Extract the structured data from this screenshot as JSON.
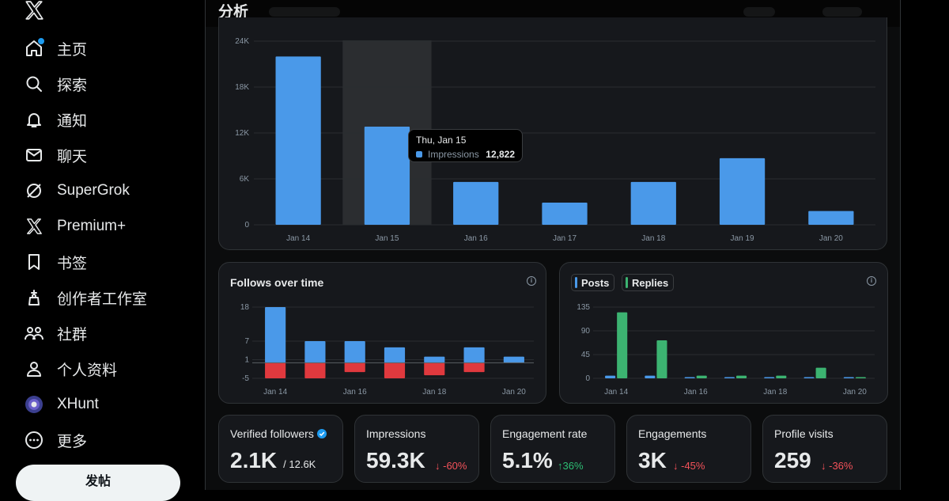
{
  "sidebar": {
    "logo": "x-logo-icon",
    "items": [
      {
        "label": "主页",
        "icon": "home-icon"
      },
      {
        "label": "探索",
        "icon": "search-icon"
      },
      {
        "label": "通知",
        "icon": "bell-icon"
      },
      {
        "label": "聊天",
        "icon": "mail-icon"
      },
      {
        "label": "SuperGrok",
        "icon": "grok-icon"
      },
      {
        "label": "Premium+",
        "icon": "x-icon"
      },
      {
        "label": "书签",
        "icon": "bookmark-icon"
      },
      {
        "label": "创作者工作室",
        "icon": "creator-studio-icon"
      },
      {
        "label": "社群",
        "icon": "communities-icon"
      },
      {
        "label": "个人资料",
        "icon": "profile-icon"
      },
      {
        "label": "XHunt",
        "icon": "xhunt-icon"
      },
      {
        "label": "更多",
        "icon": "more-icon"
      }
    ],
    "post_button": "发帖"
  },
  "header": {
    "title": "分析"
  },
  "colors": {
    "accent": "#1d9bf0",
    "blue_bar": "#4a99e9",
    "green_bar": "#3cb371",
    "red_bar": "#e0393e",
    "negative": "#f4525a",
    "positive": "#2dbf74"
  },
  "impressions_tooltip": {
    "date": "Thu, Jan 15",
    "series": "Impressions",
    "value": "12,822"
  },
  "follows_card": {
    "title": "Follows over time"
  },
  "posts_card": {
    "legend": [
      "Posts",
      "Replies"
    ]
  },
  "chart_data": [
    {
      "type": "bar",
      "categories": [
        "Jan 14",
        "Jan 15",
        "Jan 16",
        "Jan 17",
        "Jan 18",
        "Jan 19",
        "Jan 20"
      ],
      "series": [
        {
          "name": "Impressions",
          "values": [
            22000,
            12822,
            5600,
            2900,
            5600,
            8700,
            1800
          ]
        }
      ],
      "yticks": [
        "0",
        "6K",
        "12K",
        "18K",
        "24K"
      ],
      "ylim": [
        0,
        24000
      ],
      "highlighted": "Jan 15"
    },
    {
      "type": "bar",
      "title": "Follows over time",
      "categories": [
        "Jan 14",
        "Jan 15",
        "Jan 16",
        "Jan 17",
        "Jan 18",
        "Jan 19",
        "Jan 20"
      ],
      "xticks": [
        "Jan 14",
        "Jan 16",
        "Jan 18",
        "Jan 20"
      ],
      "series": [
        {
          "values": [
            18,
            7,
            7,
            5,
            2,
            5,
            2
          ]
        },
        {
          "values": [
            -5,
            -5,
            -3,
            -5,
            -4,
            -3,
            0
          ]
        }
      ],
      "yticks": [
        "-5",
        "1",
        "7",
        "18"
      ],
      "ylim": [
        -5,
        18
      ]
    },
    {
      "type": "bar",
      "categories": [
        "Jan 14",
        "Jan 15",
        "Jan 16",
        "Jan 17",
        "Jan 18",
        "Jan 19",
        "Jan 20"
      ],
      "xticks": [
        "Jan 14",
        "Jan 16",
        "Jan 18",
        "Jan 20"
      ],
      "series": [
        {
          "name": "Posts",
          "values": [
            5,
            5,
            0,
            0,
            1,
            0,
            1
          ]
        },
        {
          "name": "Replies",
          "values": [
            125,
            72,
            5,
            5,
            5,
            20,
            2
          ]
        }
      ],
      "yticks": [
        "0",
        "45",
        "90",
        "135"
      ],
      "ylim": [
        0,
        135
      ]
    }
  ],
  "stats": [
    {
      "label": "Verified followers",
      "value": "2.1K",
      "extra": "/ 12.6K",
      "verified": true
    },
    {
      "label": "Impressions",
      "value": "59.3K",
      "delta": "-60%",
      "direction": "down"
    },
    {
      "label": "Engagement rate",
      "value": "5.1%",
      "delta": "36%",
      "direction": "up"
    },
    {
      "label": "Engagements",
      "value": "3K",
      "delta": "-45%",
      "direction": "down"
    },
    {
      "label": "Profile visits",
      "value": "259",
      "delta": "-36%",
      "direction": "down"
    }
  ]
}
